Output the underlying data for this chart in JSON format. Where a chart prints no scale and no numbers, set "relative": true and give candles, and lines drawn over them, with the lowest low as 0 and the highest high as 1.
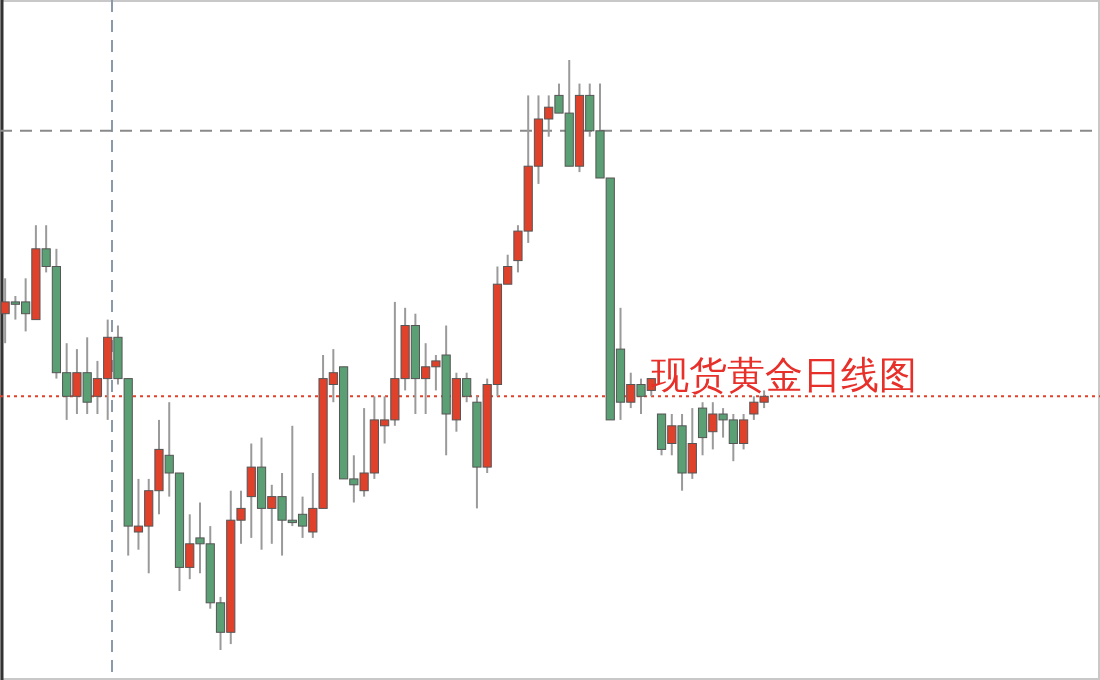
{
  "chart_data": {
    "type": "candlestick",
    "title": "现货黄金日线图",
    "relative": true,
    "categories": [
      null,
      null,
      null,
      null,
      null,
      null,
      null,
      null,
      null,
      null,
      null,
      null,
      null,
      null,
      null,
      null,
      null,
      null,
      null,
      null,
      null,
      null,
      null,
      null,
      null,
      null,
      null,
      null,
      null,
      null,
      null,
      null,
      null,
      null,
      null,
      null,
      null,
      null,
      null,
      null,
      null,
      null,
      null,
      null,
      null,
      null,
      null,
      null,
      null,
      null,
      null,
      null,
      null,
      null,
      null,
      null,
      null,
      null,
      null,
      null,
      null,
      null,
      null,
      null,
      null,
      null,
      null,
      null,
      null,
      null,
      null,
      null,
      null,
      null,
      null
    ],
    "ohlc": [
      [
        0.57,
        0.63,
        0.52,
        0.59
      ],
      [
        0.59,
        0.6,
        0.56,
        0.59
      ],
      [
        0.59,
        0.63,
        0.54,
        0.57
      ],
      [
        0.56,
        0.72,
        0.56,
        0.68
      ],
      [
        0.68,
        0.72,
        0.64,
        0.65
      ],
      [
        0.65,
        0.68,
        0.46,
        0.47
      ],
      [
        0.47,
        0.52,
        0.39,
        0.43
      ],
      [
        0.43,
        0.51,
        0.4,
        0.47
      ],
      [
        0.47,
        0.53,
        0.4,
        0.42
      ],
      [
        0.43,
        0.49,
        0.4,
        0.46
      ],
      [
        0.46,
        0.56,
        0.39,
        0.53
      ],
      [
        0.53,
        0.55,
        0.45,
        0.46
      ],
      [
        0.46,
        0.46,
        0.16,
        0.21
      ],
      [
        0.2,
        0.29,
        0.17,
        0.21
      ],
      [
        0.21,
        0.29,
        0.13,
        0.27
      ],
      [
        0.27,
        0.39,
        0.23,
        0.34
      ],
      [
        0.33,
        0.42,
        0.26,
        0.3
      ],
      [
        0.3,
        0.3,
        0.1,
        0.14
      ],
      [
        0.14,
        0.23,
        0.12,
        0.18
      ],
      [
        0.19,
        0.25,
        0.13,
        0.18
      ],
      [
        0.18,
        0.21,
        0.07,
        0.08
      ],
      [
        0.08,
        0.09,
        0.0,
        0.03
      ],
      [
        0.03,
        0.27,
        0.01,
        0.22
      ],
      [
        0.22,
        0.27,
        0.18,
        0.24
      ],
      [
        0.26,
        0.35,
        0.19,
        0.31
      ],
      [
        0.31,
        0.36,
        0.17,
        0.24
      ],
      [
        0.24,
        0.28,
        0.18,
        0.26
      ],
      [
        0.26,
        0.3,
        0.16,
        0.22
      ],
      [
        0.22,
        0.38,
        0.21,
        0.22
      ],
      [
        0.23,
        0.26,
        0.19,
        0.21
      ],
      [
        0.2,
        0.3,
        0.19,
        0.24
      ],
      [
        0.24,
        0.5,
        0.24,
        0.46
      ],
      [
        0.45,
        0.51,
        0.42,
        0.47
      ],
      [
        0.48,
        0.48,
        0.29,
        0.29
      ],
      [
        0.29,
        0.33,
        0.25,
        0.28
      ],
      [
        0.27,
        0.41,
        0.26,
        0.3
      ],
      [
        0.3,
        0.43,
        0.29,
        0.39
      ],
      [
        0.38,
        0.43,
        0.35,
        0.39
      ],
      [
        0.39,
        0.59,
        0.38,
        0.46
      ],
      [
        0.46,
        0.58,
        0.44,
        0.55
      ],
      [
        0.55,
        0.57,
        0.4,
        0.46
      ],
      [
        0.46,
        0.52,
        0.4,
        0.48
      ],
      [
        0.48,
        0.5,
        0.44,
        0.49
      ],
      [
        0.5,
        0.55,
        0.33,
        0.4
      ],
      [
        0.39,
        0.47,
        0.37,
        0.46
      ],
      [
        0.46,
        0.47,
        0.42,
        0.43
      ],
      [
        0.42,
        0.43,
        0.24,
        0.31
      ],
      [
        0.31,
        0.46,
        0.3,
        0.45
      ],
      [
        0.45,
        0.65,
        0.43,
        0.62
      ],
      [
        0.62,
        0.67,
        0.62,
        0.65
      ],
      [
        0.66,
        0.72,
        0.64,
        0.71
      ],
      [
        0.71,
        0.94,
        0.69,
        0.82
      ],
      [
        0.82,
        0.94,
        0.79,
        0.9
      ],
      [
        0.9,
        0.94,
        0.87,
        0.92
      ],
      [
        0.94,
        0.96,
        0.91,
        0.91
      ],
      [
        0.91,
        1.0,
        0.82,
        0.82
      ],
      [
        0.82,
        0.96,
        0.81,
        0.94
      ],
      [
        0.94,
        0.96,
        0.87,
        0.88
      ],
      [
        0.88,
        0.96,
        0.8,
        0.8
      ],
      [
        0.8,
        0.8,
        0.39,
        0.39
      ],
      [
        0.51,
        0.58,
        0.39,
        0.42
      ],
      [
        0.42,
        0.47,
        0.41,
        0.45
      ],
      [
        0.45,
        0.46,
        0.4,
        0.43
      ],
      [
        0.44,
        0.46,
        0.43,
        0.46
      ],
      [
        0.4,
        0.4,
        0.33,
        0.34
      ],
      [
        0.35,
        0.4,
        0.33,
        0.38
      ],
      [
        0.38,
        0.4,
        0.27,
        0.3
      ],
      [
        0.3,
        0.41,
        0.29,
        0.35
      ],
      [
        0.41,
        0.42,
        0.33,
        0.36
      ],
      [
        0.37,
        0.42,
        0.34,
        0.4
      ],
      [
        0.4,
        0.41,
        0.36,
        0.39
      ],
      [
        0.39,
        0.4,
        0.32,
        0.35
      ],
      [
        0.35,
        0.4,
        0.34,
        0.39
      ],
      [
        0.4,
        0.43,
        0.39,
        0.42
      ],
      [
        0.42,
        0.44,
        0.41,
        0.43
      ]
    ],
    "colors": [
      "#e0412b",
      "#5b9f74",
      "#5b9f74",
      "#e0412b",
      "#5b9f74",
      "#5b9f74",
      "#5b9f74",
      "#e0412b",
      "#5b9f74",
      "#e0412b",
      "#e0412b",
      "#5b9f74",
      "#5b9f74",
      "#e0412b",
      "#e0412b",
      "#e0412b",
      "#5b9f74",
      "#5b9f74",
      "#e0412b",
      "#5b9f74",
      "#5b9f74",
      "#5b9f74",
      "#e0412b",
      "#e0412b",
      "#e0412b",
      "#5b9f74",
      "#e0412b",
      "#5b9f74",
      "#5b9f74",
      "#5b9f74",
      "#e0412b",
      "#e0412b",
      "#e0412b",
      "#5b9f74",
      "#5b9f74",
      "#e0412b",
      "#e0412b",
      "#e0412b",
      "#e0412b",
      "#e0412b",
      "#5b9f74",
      "#e0412b",
      "#e0412b",
      "#5b9f74",
      "#e0412b",
      "#5b9f74",
      "#5b9f74",
      "#e0412b",
      "#e0412b",
      "#e0412b",
      "#e0412b",
      "#e0412b",
      "#e0412b",
      "#e0412b",
      "#5b9f74",
      "#5b9f74",
      "#e0412b",
      "#5b9f74",
      "#5b9f74",
      "#5b9f74",
      "#5b9f74",
      "#e0412b",
      "#5b9f74",
      "#e0412b",
      "#5b9f74",
      "#e0412b",
      "#5b9f74",
      "#e0412b",
      "#5b9f74",
      "#e0412b",
      "#5b9f74",
      "#5b9f74",
      "#e0412b",
      "#e0412b",
      "#e0412b"
    ],
    "ref_lines": [
      {
        "axis": "y",
        "value": 0.88,
        "color": "#8a8a8a",
        "line_style": "dashed"
      },
      {
        "axis": "y",
        "value": 0.43,
        "color": "#e0412b",
        "line_style": "dotted"
      }
    ]
  }
}
